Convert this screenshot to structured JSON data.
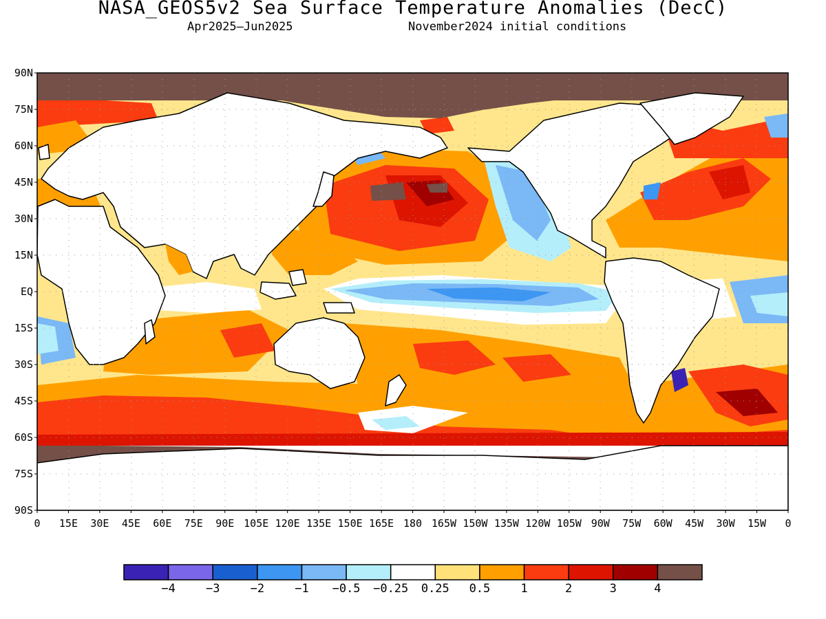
{
  "title": "NASA_GEOS5v2 Sea Surface Temperature Anomalies (DecC)",
  "subtitle_left": "Apr2025–Jun2025",
  "subtitle_right": "November2024 initial conditions",
  "colors": {
    "land": "#ffffff",
    "no_data": "#745048",
    "coast": "#000000",
    "grid": "#9a9a9a"
  },
  "lat_labels": [
    "90N",
    "75N",
    "60N",
    "45N",
    "30N",
    "15N",
    "EQ",
    "15S",
    "30S",
    "45S",
    "60S",
    "75S",
    "90S"
  ],
  "lon_labels": [
    "0",
    "15E",
    "30E",
    "45E",
    "60E",
    "75E",
    "90E",
    "105E",
    "120E",
    "135E",
    "150E",
    "165E",
    "180",
    "165W",
    "150W",
    "135W",
    "120W",
    "105W",
    "90W",
    "75W",
    "60W",
    "45W",
    "30W",
    "15W",
    "0"
  ],
  "colorbar": {
    "colors": [
      "#3a22b4",
      "#7a66e8",
      "#1a5fd0",
      "#3c96f2",
      "#7ab8f6",
      "#b4eefa",
      "#ffffff",
      "#ffe17a",
      "#ffa000",
      "#fa3c10",
      "#dc1400",
      "#a00000",
      "#745048"
    ],
    "labels": [
      "−4",
      "−3",
      "−2",
      "−1",
      "−0.5",
      "−0.25",
      "0.25",
      "0.5",
      "1",
      "2",
      "3",
      "4"
    ]
  }
}
